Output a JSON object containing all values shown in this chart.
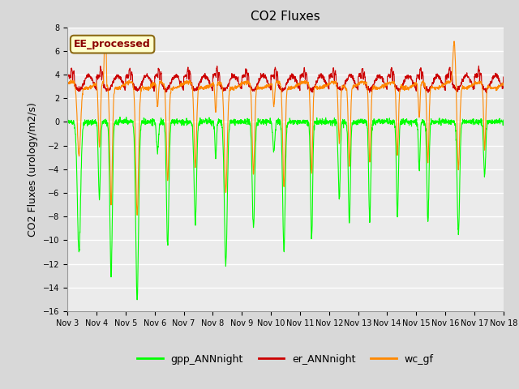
{
  "title": "CO2 Fluxes",
  "ylabel": "CO2 Fluxes (urology/m2/s)",
  "ylim": [
    -16,
    8
  ],
  "yticks": [
    -16,
    -14,
    -12,
    -10,
    -8,
    -6,
    -4,
    -2,
    0,
    2,
    4,
    6,
    8
  ],
  "xtick_labels": [
    "Nov 3",
    "Nov 4",
    "Nov 5",
    "Nov 6",
    "Nov 7",
    "Nov 8",
    "Nov 9",
    "Nov 10",
    "Nov 11",
    "Nov 12",
    "Nov 13",
    "Nov 14",
    "Nov 15",
    "Nov 16",
    "Nov 17",
    "Nov 18"
  ],
  "n_days": 15,
  "annotation_text": "EE_processed",
  "annotation_color": "#8B0000",
  "annotation_bg": "#FFFFCC",
  "annotation_border": "#8B6914",
  "line_green": "#00FF00",
  "line_red": "#CC0000",
  "line_orange": "#FF8800",
  "legend_green": "gpp_ANNnight",
  "legend_red": "er_ANNnight",
  "legend_orange": "wc_gf",
  "bg_color": "#D8D8D8",
  "plot_bg": "#EBEBEB",
  "grid_color": "#FFFFFF",
  "linewidth": 0.8,
  "title_fontsize": 11,
  "label_fontsize": 9,
  "tick_fontsize": 7
}
